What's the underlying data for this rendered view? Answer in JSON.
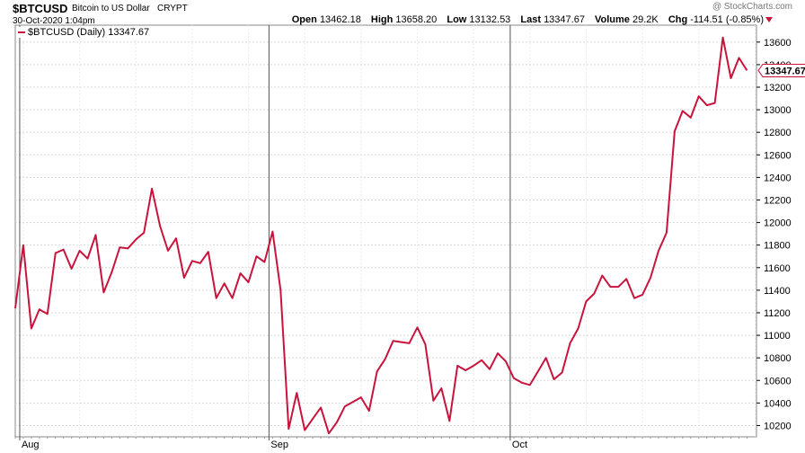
{
  "header": {
    "symbol": "$BTCUSD",
    "description": "Bitcoin to US Dollar",
    "exchange": "CRYPT",
    "datetime": "30-Oct-2020 1:04pm",
    "credit": "@ StockCharts.com",
    "open_label": "Open",
    "open": "13462.18",
    "high_label": "High",
    "high": "13658.20",
    "low_label": "Low",
    "low": "13132.53",
    "last_label": "Last",
    "last": "13347.67",
    "volume_label": "Volume",
    "volume": "29.2K",
    "chg_label": "Chg",
    "chg": "-114.51 (-0.85%)"
  },
  "legend": {
    "text": "$BTCUSD (Daily) 13347.67"
  },
  "colors": {
    "line": "#c8143c",
    "grid": "#d8d8d8",
    "axis": "#000000"
  },
  "chart_data": {
    "type": "line",
    "title": "$BTCUSD (Daily)",
    "x_tick_labels": [
      {
        "label": "Aug",
        "index": 1
      },
      {
        "label": "Sep",
        "index": 32
      },
      {
        "label": "Oct",
        "index": 62
      }
    ],
    "y_ticks": [
      10200,
      10400,
      10600,
      10800,
      11000,
      11200,
      11400,
      11600,
      11800,
      12000,
      12200,
      12400,
      12600,
      12800,
      13000,
      13200,
      13400,
      13600
    ],
    "ylim": [
      10100,
      13750
    ],
    "last_value_label": "13347.67",
    "series": [
      {
        "values": [
          11240,
          11800,
          11060,
          11230,
          11190,
          11730,
          11760,
          11590,
          11750,
          11680,
          11890,
          11380,
          11560,
          11780,
          11770,
          11850,
          11910,
          12300,
          11970,
          11750,
          11860,
          11510,
          11660,
          11640,
          11740,
          11330,
          11460,
          11330,
          11550,
          11470,
          11700,
          11650,
          11920,
          11400,
          10170,
          10490,
          10160,
          10260,
          10360,
          10130,
          10230,
          10370,
          10410,
          10450,
          10330,
          10680,
          10790,
          10950,
          10940,
          10930,
          11070,
          10920,
          10420,
          10530,
          10240,
          10730,
          10690,
          10730,
          10780,
          10700,
          10840,
          10770,
          10620,
          10580,
          10560,
          10680,
          10800,
          10610,
          10670,
          10930,
          11060,
          11300,
          11370,
          11530,
          11430,
          11430,
          11500,
          11330,
          11360,
          11510,
          11750,
          11910,
          12810,
          12990,
          12930,
          13120,
          13040,
          13060,
          13640,
          13280,
          13460,
          13348
        ]
      }
    ]
  }
}
